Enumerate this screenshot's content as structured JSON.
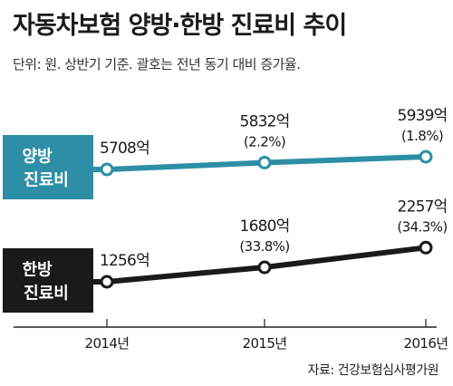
{
  "header": {
    "title": "자동차보험 양방·한방 진료비 추이",
    "subtitle": "단위: 원. 상반기 기준. 괄호는 전년 동기 대비 증가율."
  },
  "footer": {
    "source": "자료: 건강보험심사평가원"
  },
  "chart_data": {
    "type": "line",
    "x": [
      "2014년",
      "2015년",
      "2016년"
    ],
    "ylabel": "",
    "series": [
      {
        "name": [
          "양방",
          "진료비"
        ],
        "values": [
          5708,
          5832,
          5939
        ],
        "value_labels": [
          "5708억",
          "5832억",
          "5939억"
        ],
        "growth_labels": [
          "",
          "(2.2%)",
          "(1.8%)"
        ],
        "color": "#2e8ea6"
      },
      {
        "name": [
          "한방",
          "진료비"
        ],
        "values": [
          1256,
          1680,
          2257
        ],
        "value_labels": [
          "1256억",
          "1680억",
          "2257억"
        ],
        "growth_labels": [
          "",
          "(33.8%)",
          "(34.3%)"
        ],
        "color": "#1a1a1a"
      }
    ],
    "grid": false,
    "legend": "left"
  }
}
